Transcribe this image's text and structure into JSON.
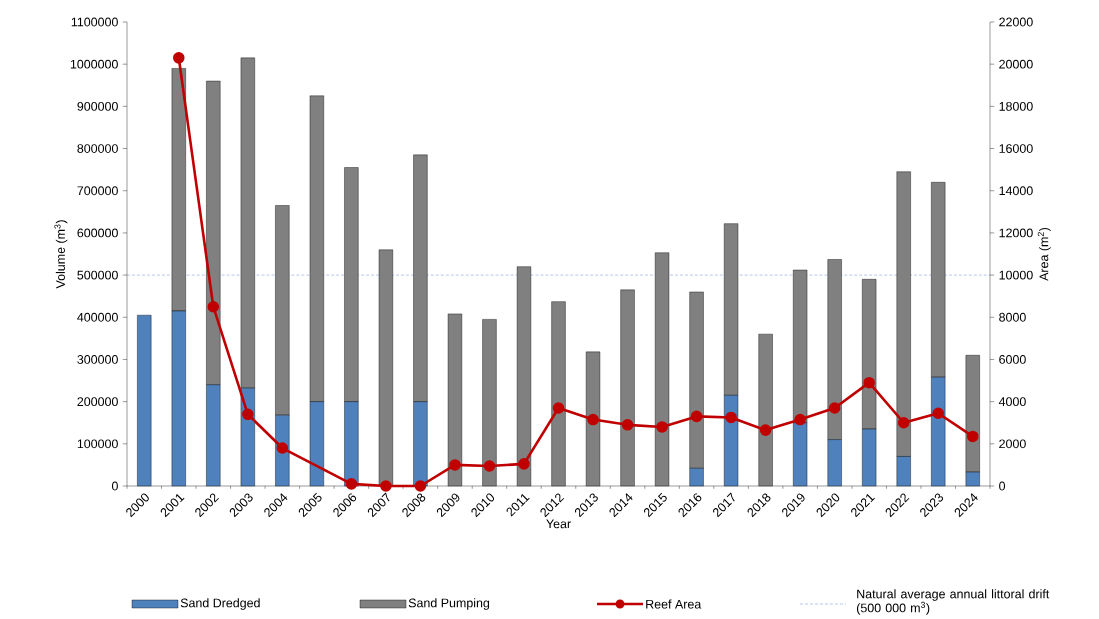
{
  "chart_data": {
    "type": "bar",
    "stacked": true,
    "xlabel": "Year",
    "ylabel": "Volume (m$^{3}$)",
    "y2label": "Area (m$^{2}$)",
    "categories": [
      "2000",
      "2001",
      "2002",
      "2003",
      "2004",
      "2005",
      "2006",
      "2007",
      "2008",
      "2009",
      "2010",
      "2011",
      "2012",
      "2013",
      "2014",
      "2015",
      "2016",
      "2017",
      "2018",
      "2019",
      "2020",
      "2021",
      "2022",
      "2023",
      "2024"
    ],
    "series": [
      {
        "name": "Sand Dredged",
        "type": "bar",
        "color": "#4f81bd",
        "values": [
          405000,
          415000,
          240000,
          232000,
          168000,
          200000,
          200000,
          0,
          200000,
          0,
          0,
          0,
          0,
          0,
          0,
          0,
          42000,
          215000,
          0,
          150000,
          110000,
          135000,
          70000,
          258000,
          33000
        ]
      },
      {
        "name": "Sand Pumping",
        "type": "bar",
        "color": "#808080",
        "values": [
          0,
          575000,
          720000,
          783000,
          497000,
          725000,
          555000,
          560000,
          585000,
          408000,
          395000,
          520000,
          437000,
          318000,
          465000,
          553000,
          418000,
          407000,
          360000,
          362000,
          427000,
          355000,
          675000,
          462000,
          277000
        ]
      },
      {
        "name": "Reef Area",
        "type": "line",
        "axis": "y2",
        "marker": "circle",
        "color": "#c00000",
        "values": [
          null,
          20300,
          8500,
          3400,
          1800,
          null,
          100,
          0,
          0,
          1000,
          950,
          1050,
          3700,
          3150,
          2900,
          2800,
          3300,
          3250,
          2650,
          3150,
          3700,
          4900,
          3000,
          3450,
          2350
        ]
      }
    ],
    "ylim": [
      0,
      1100000
    ],
    "yticks": [
      0,
      100000,
      200000,
      300000,
      400000,
      500000,
      600000,
      700000,
      800000,
      900000,
      1000000,
      1100000
    ],
    "y2lim": [
      0,
      22000
    ],
    "y2ticks": [
      0,
      2000,
      4000,
      6000,
      8000,
      10000,
      12000,
      14000,
      16000,
      18000,
      20000,
      22000
    ],
    "ref_lines": [
      {
        "axis": "y",
        "value": 500000,
        "label": "Natural average annual littoral drift (500 000 m$^{3}$)",
        "color": "#4472c4",
        "line_style": "dashed"
      }
    ],
    "legend": "bottom",
    "grid": false
  }
}
